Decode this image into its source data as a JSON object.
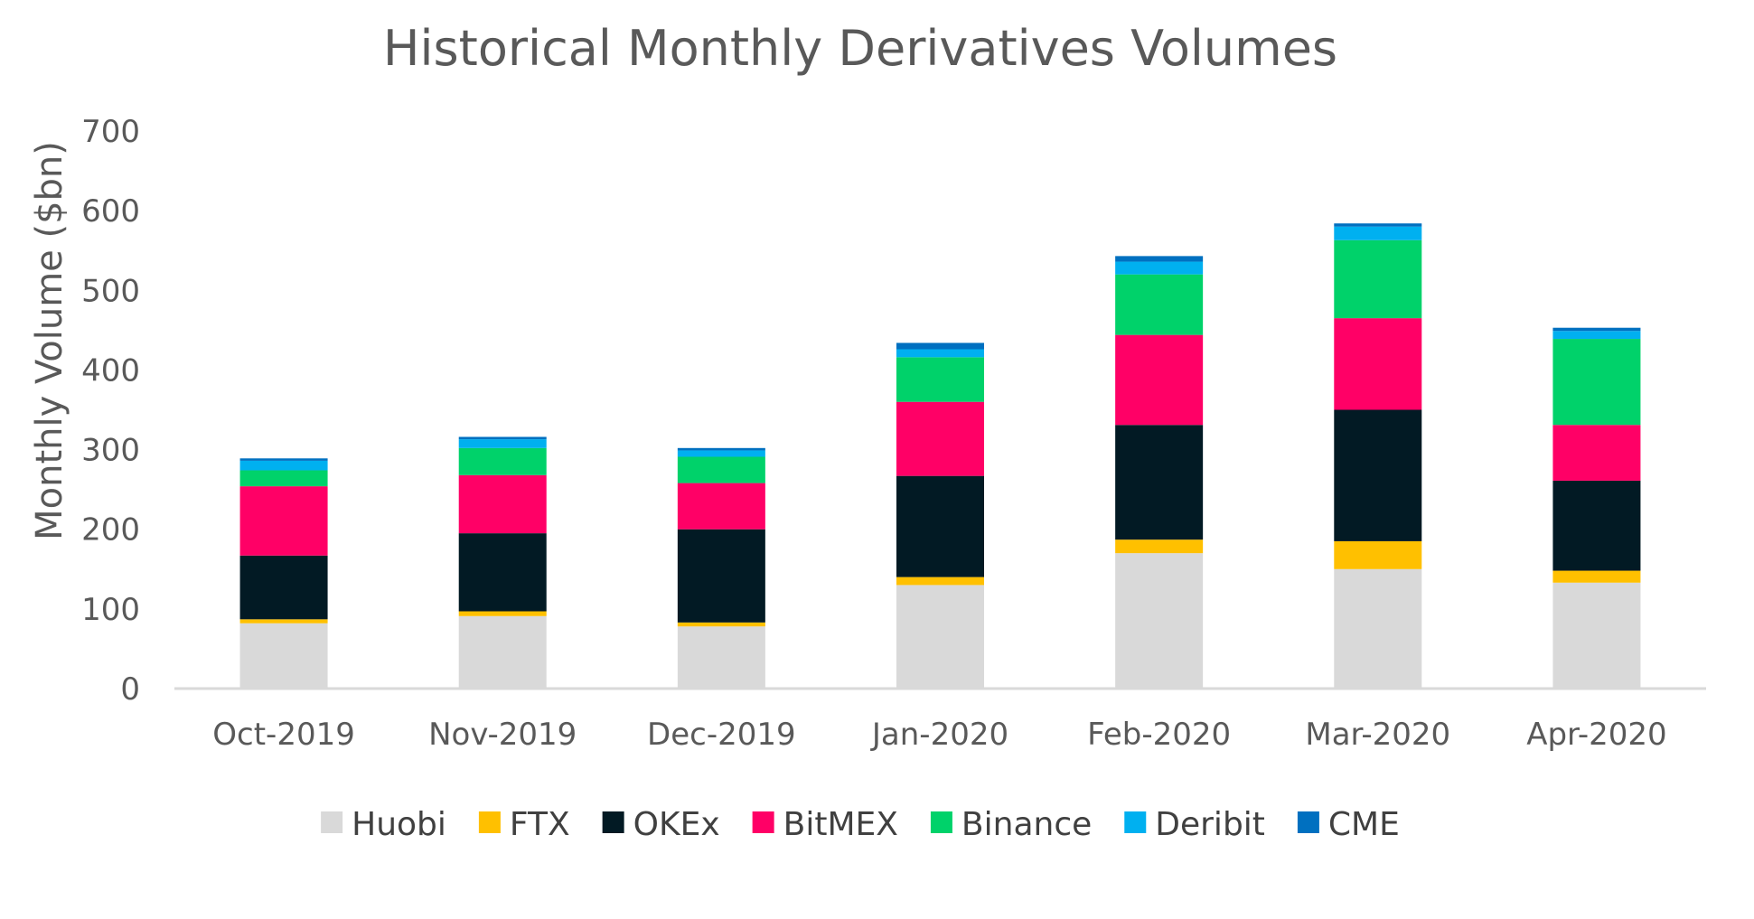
{
  "chart_data": {
    "type": "bar",
    "stacked": true,
    "title": "Historical Monthly Derivatives Volumes",
    "xlabel": "",
    "ylabel": "Monthly Volume ($bn)",
    "ylim": [
      0,
      700
    ],
    "yticks": [
      0,
      100,
      200,
      300,
      400,
      500,
      600,
      700
    ],
    "grid": false,
    "legend_position": "bottom",
    "categories": [
      "Oct-2019",
      "Nov-2019",
      "Dec-2019",
      "Jan-2020",
      "Feb-2020",
      "Mar-2020",
      "Apr-2020"
    ],
    "series": [
      {
        "name": "Huobi",
        "color": "#d9d9d9",
        "values": [
          82,
          91,
          78,
          130,
          170,
          150,
          133
        ]
      },
      {
        "name": "FTX",
        "color": "#ffc000",
        "values": [
          5,
          6,
          5,
          10,
          17,
          35,
          15
        ]
      },
      {
        "name": "OKEx",
        "color": "#021a24",
        "values": [
          80,
          98,
          117,
          127,
          144,
          165,
          113
        ]
      },
      {
        "name": "BitMEX",
        "color": "#ff0066",
        "values": [
          87,
          73,
          58,
          93,
          113,
          115,
          70
        ]
      },
      {
        "name": "Binance",
        "color": "#00d26a",
        "values": [
          20,
          34,
          33,
          56,
          76,
          98,
          108
        ]
      },
      {
        "name": "Deribit",
        "color": "#00b0f0",
        "values": [
          12,
          11,
          8,
          10,
          16,
          17,
          10
        ]
      },
      {
        "name": "CME",
        "color": "#0070c0",
        "values": [
          3,
          3,
          3,
          8,
          7,
          4,
          4
        ]
      }
    ]
  }
}
